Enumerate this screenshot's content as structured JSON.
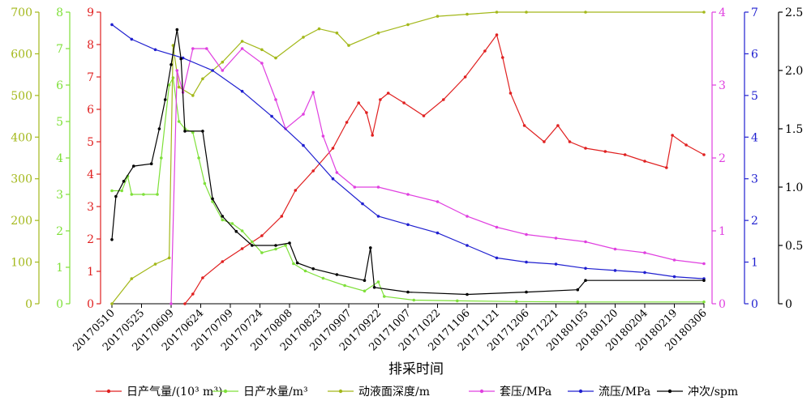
{
  "chart_data": {
    "type": "line",
    "xlabel": "排采时间",
    "x_ticks": [
      "20170510",
      "20170525",
      "20170609",
      "20170624",
      "20170709",
      "20170724",
      "20170808",
      "20170823",
      "20170907",
      "20170922",
      "20171007",
      "20171022",
      "20171106",
      "20171121",
      "20171206",
      "20171221",
      "20180105",
      "20180120",
      "20180204",
      "20180219",
      "20180306"
    ],
    "x_range": [
      "20170510",
      "20180306"
    ],
    "grid": false,
    "legend_position": "bottom",
    "axes": [
      {
        "id": "water_depth",
        "color": "#a3b81a",
        "range": [
          0,
          700
        ],
        "ticks": [
          "0",
          "100",
          "200",
          "300",
          "400",
          "500",
          "600",
          "700"
        ]
      },
      {
        "id": "water",
        "color": "#7fe03a",
        "range": [
          0,
          8
        ],
        "ticks": [
          "0",
          "1",
          "2",
          "3",
          "4",
          "5",
          "6",
          "7",
          "8"
        ]
      },
      {
        "id": "gas",
        "color": "#e02020",
        "range": [
          0,
          9
        ],
        "ticks": [
          "0",
          "1",
          "2",
          "3",
          "4",
          "5",
          "6",
          "7",
          "8",
          "9"
        ]
      },
      {
        "id": "casing",
        "color": "#e040e0",
        "range": [
          0,
          4
        ],
        "ticks": [
          "0",
          "1",
          "2",
          "3",
          "4"
        ]
      },
      {
        "id": "flow",
        "color": "#2020d0",
        "range": [
          0,
          7
        ],
        "ticks": [
          "0",
          "1",
          "2",
          "3",
          "4",
          "5",
          "6",
          "7"
        ]
      },
      {
        "id": "spm",
        "color": "#000000",
        "range": [
          0,
          2.5
        ],
        "ticks": [
          "0",
          "0.5",
          "1.0",
          "1.5",
          "2.0",
          "2.5"
        ]
      }
    ],
    "series": [
      {
        "name": "日产气量/(10³ m³)",
        "axis": "gas",
        "color": "#e02020",
        "marker": "circle",
        "points": [
          [
            "20170616",
            0
          ],
          [
            "20170620",
            0.3
          ],
          [
            "20170625",
            0.8
          ],
          [
            "20170705",
            1.3
          ],
          [
            "20170715",
            1.7
          ],
          [
            "20170725",
            2.1
          ],
          [
            "20170804",
            2.7
          ],
          [
            "20170811",
            3.5
          ],
          [
            "20170820",
            4.1
          ],
          [
            "20170830",
            4.8
          ],
          [
            "20170906",
            5.6
          ],
          [
            "20170912",
            6.2
          ],
          [
            "20170916",
            5.9
          ],
          [
            "20170919",
            5.2
          ],
          [
            "20170923",
            6.3
          ],
          [
            "20170927",
            6.5
          ],
          [
            "20171005",
            6.2
          ],
          [
            "20171015",
            5.8
          ],
          [
            "20171025",
            6.3
          ],
          [
            "20171105",
            7.0
          ],
          [
            "20171115",
            7.8
          ],
          [
            "20171121",
            8.3
          ],
          [
            "20171124",
            7.6
          ],
          [
            "20171128",
            6.5
          ],
          [
            "20171205",
            5.5
          ],
          [
            "20171215",
            5.0
          ],
          [
            "20171222",
            5.5
          ],
          [
            "20171228",
            5.0
          ],
          [
            "20180105",
            4.8
          ],
          [
            "20180115",
            4.7
          ],
          [
            "20180125",
            4.6
          ],
          [
            "20180204",
            4.4
          ],
          [
            "20180215",
            4.2
          ],
          [
            "20180218",
            5.2
          ],
          [
            "20180225",
            4.9
          ],
          [
            "20180306",
            4.6
          ]
        ]
      },
      {
        "name": "日产水量/m³",
        "axis": "water",
        "color": "#7fe03a",
        "marker": "circle",
        "points": [
          [
            "20170510",
            3.1
          ],
          [
            "20170515",
            3.1
          ],
          [
            "20170518",
            3.5
          ],
          [
            "20170520",
            3.0
          ],
          [
            "20170526",
            3.0
          ],
          [
            "20170602",
            3.0
          ],
          [
            "20170604",
            4.0
          ],
          [
            "20170608",
            6.0
          ],
          [
            "20170610",
            6.2
          ],
          [
            "20170613",
            5.0
          ],
          [
            "20170616",
            4.8
          ],
          [
            "20170620",
            4.7
          ],
          [
            "20170623",
            4.0
          ],
          [
            "20170626",
            3.3
          ],
          [
            "20170630",
            2.8
          ],
          [
            "20170705",
            2.3
          ],
          [
            "20170710",
            2.2
          ],
          [
            "20170715",
            2.0
          ],
          [
            "20170720",
            1.7
          ],
          [
            "20170725",
            1.4
          ],
          [
            "20170801",
            1.5
          ],
          [
            "20170806",
            1.6
          ],
          [
            "20170810",
            1.1
          ],
          [
            "20170816",
            0.9
          ],
          [
            "20170825",
            0.7
          ],
          [
            "20170905",
            0.5
          ],
          [
            "20170915",
            0.35
          ],
          [
            "20170922",
            0.6
          ],
          [
            "20170925",
            0.2
          ],
          [
            "20171010",
            0.1
          ],
          [
            "20171101",
            0.08
          ],
          [
            "20171201",
            0.06
          ],
          [
            "20180101",
            0.05
          ],
          [
            "20180306",
            0.05
          ]
        ]
      },
      {
        "name": "动液面深度/m",
        "axis": "water_depth",
        "color": "#a3b81a",
        "marker": "circle",
        "points": [
          [
            "20170510",
            0
          ],
          [
            "20170520",
            60
          ],
          [
            "20170601",
            95
          ],
          [
            "20170608",
            110
          ],
          [
            "20170610",
            620
          ],
          [
            "20170613",
            520
          ],
          [
            "20170620",
            500
          ],
          [
            "20170625",
            540
          ],
          [
            "20170705",
            580
          ],
          [
            "20170715",
            630
          ],
          [
            "20170725",
            610
          ],
          [
            "20170801",
            590
          ],
          [
            "20170815",
            640
          ],
          [
            "20170823",
            660
          ],
          [
            "20170901",
            650
          ],
          [
            "20170907",
            620
          ],
          [
            "20170922",
            650
          ],
          [
            "20171007",
            670
          ],
          [
            "20171022",
            690
          ],
          [
            "20171106",
            695
          ],
          [
            "20171121",
            700
          ],
          [
            "20171206",
            700
          ],
          [
            "20180105",
            700
          ],
          [
            "20180306",
            700
          ]
        ]
      },
      {
        "name": "套压/MPa",
        "axis": "casing",
        "color": "#e040e0",
        "marker": "circle",
        "points": [
          [
            "20170609",
            0
          ],
          [
            "20170612",
            3.2
          ],
          [
            "20170615",
            2.9
          ],
          [
            "20170620",
            3.5
          ],
          [
            "20170627",
            3.5
          ],
          [
            "20170705",
            3.2
          ],
          [
            "20170715",
            3.5
          ],
          [
            "20170725",
            3.3
          ],
          [
            "20170801",
            2.8
          ],
          [
            "20170806",
            2.4
          ],
          [
            "20170815",
            2.6
          ],
          [
            "20170820",
            2.9
          ],
          [
            "20170825",
            2.3
          ],
          [
            "20170901",
            1.8
          ],
          [
            "20170910",
            1.6
          ],
          [
            "20170922",
            1.6
          ],
          [
            "20171007",
            1.5
          ],
          [
            "20171022",
            1.4
          ],
          [
            "20171106",
            1.2
          ],
          [
            "20171121",
            1.05
          ],
          [
            "20171206",
            0.95
          ],
          [
            "20171221",
            0.9
          ],
          [
            "20180105",
            0.85
          ],
          [
            "20180120",
            0.75
          ],
          [
            "20180204",
            0.7
          ],
          [
            "20180219",
            0.6
          ],
          [
            "20180306",
            0.55
          ]
        ]
      },
      {
        "name": "流压/MPa",
        "axis": "flow",
        "color": "#2020d0",
        "marker": "circle",
        "points": [
          [
            "20170510",
            6.7
          ],
          [
            "20170520",
            6.35
          ],
          [
            "20170601",
            6.1
          ],
          [
            "20170615",
            5.9
          ],
          [
            "20170630",
            5.6
          ],
          [
            "20170715",
            5.1
          ],
          [
            "20170730",
            4.5
          ],
          [
            "20170815",
            3.8
          ],
          [
            "20170830",
            3.0
          ],
          [
            "20170914",
            2.4
          ],
          [
            "20170922",
            2.1
          ],
          [
            "20171007",
            1.9
          ],
          [
            "20171022",
            1.7
          ],
          [
            "20171106",
            1.4
          ],
          [
            "20171121",
            1.1
          ],
          [
            "20171206",
            1.0
          ],
          [
            "20171221",
            0.95
          ],
          [
            "20180105",
            0.85
          ],
          [
            "20180120",
            0.8
          ],
          [
            "20180204",
            0.75
          ],
          [
            "20180219",
            0.65
          ],
          [
            "20180306",
            0.6
          ]
        ]
      },
      {
        "name": "冲次/spm",
        "axis": "spm",
        "color": "#000000",
        "marker": "circle",
        "points": [
          [
            "20170510",
            0.55
          ],
          [
            "20170512",
            0.92
          ],
          [
            "20170516",
            1.05
          ],
          [
            "20170521",
            1.18
          ],
          [
            "20170530",
            1.2
          ],
          [
            "20170603",
            1.5
          ],
          [
            "20170606",
            1.75
          ],
          [
            "20170609",
            2.05
          ],
          [
            "20170612",
            2.35
          ],
          [
            "20170614",
            2.1
          ],
          [
            "20170616",
            1.48
          ],
          [
            "20170625",
            1.48
          ],
          [
            "20170630",
            0.9
          ],
          [
            "20170705",
            0.75
          ],
          [
            "20170712",
            0.62
          ],
          [
            "20170720",
            0.5
          ],
          [
            "20170801",
            0.5
          ],
          [
            "20170808",
            0.52
          ],
          [
            "20170812",
            0.35
          ],
          [
            "20170820",
            0.3
          ],
          [
            "20170901",
            0.25
          ],
          [
            "20170915",
            0.2
          ],
          [
            "20170918",
            0.48
          ],
          [
            "20170920",
            0.14
          ],
          [
            "20171007",
            0.1
          ],
          [
            "20171106",
            0.08
          ],
          [
            "20171206",
            0.1
          ],
          [
            "20180101",
            0.12
          ],
          [
            "20180105",
            0.2
          ],
          [
            "20180306",
            0.2
          ]
        ]
      }
    ]
  }
}
